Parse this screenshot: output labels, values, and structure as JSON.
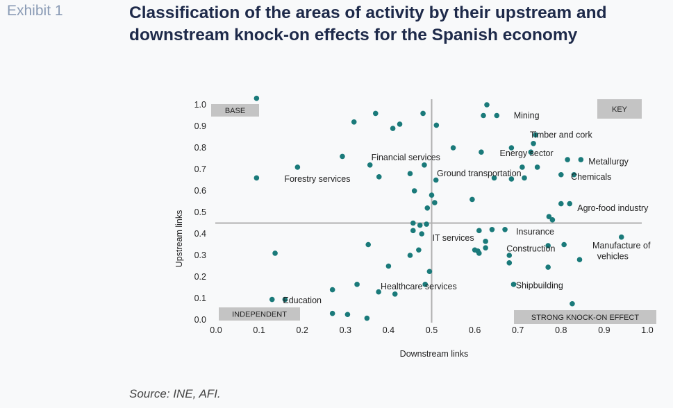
{
  "header": {
    "exhibit": "Exhibit 1",
    "title": "Classification of the areas of activity by their upstream and downstream knock-on effects for the Spanish economy"
  },
  "footer": {
    "source": "Source: INE, AFI."
  },
  "colors": {
    "marker": "#1a7a7a",
    "quadrant_box": "#c4c4c4",
    "divider": "#b0b0b0",
    "text": "#222222"
  },
  "chart_data": {
    "type": "scatter",
    "xlabel": "Downstream links",
    "ylabel": "Upstream links",
    "xlim": [
      0,
      1
    ],
    "ylim": [
      0,
      1
    ],
    "xticks": [
      "0.0",
      "0.1",
      "0.2",
      "0.3",
      "0.4",
      "0.5",
      "0.6",
      "0.7",
      "0.8",
      "0.9",
      "1.0"
    ],
    "yticks": [
      "0.0",
      "0.1",
      "0.2",
      "0.3",
      "0.4",
      "0.5",
      "0.6",
      "0.7",
      "0.8",
      "0.9",
      "1.0"
    ],
    "grid": false,
    "divider": {
      "x": 0.5,
      "y": 0.45
    },
    "quadrants": {
      "base": "BASE",
      "key": "KEY",
      "independent": "INDEPENDENT",
      "strong": "STRONG KNOCK-ON EFFECT"
    },
    "points": [
      {
        "x": 0.094,
        "y": 1.03
      },
      {
        "x": 0.094,
        "y": 0.66
      },
      {
        "x": 0.137,
        "y": 0.31
      },
      {
        "x": 0.13,
        "y": 0.095
      },
      {
        "x": 0.16,
        "y": 0.095
      },
      {
        "x": 0.189,
        "y": 0.71
      },
      {
        "x": 0.27,
        "y": 0.14
      },
      {
        "x": 0.27,
        "y": 0.03
      },
      {
        "x": 0.293,
        "y": 0.76
      },
      {
        "x": 0.305,
        "y": 0.025
      },
      {
        "x": 0.32,
        "y": 0.92
      },
      {
        "x": 0.327,
        "y": 0.165
      },
      {
        "x": 0.35,
        "y": 0.008
      },
      {
        "x": 0.353,
        "y": 0.35
      },
      {
        "x": 0.357,
        "y": 0.72
      },
      {
        "x": 0.37,
        "y": 0.96
      },
      {
        "x": 0.378,
        "y": 0.665
      },
      {
        "x": 0.377,
        "y": 0.13
      },
      {
        "x": 0.4,
        "y": 0.25
      },
      {
        "x": 0.41,
        "y": 0.89
      },
      {
        "x": 0.415,
        "y": 0.12
      },
      {
        "x": 0.426,
        "y": 0.91
      },
      {
        "x": 0.45,
        "y": 0.68
      },
      {
        "x": 0.45,
        "y": 0.3
      },
      {
        "x": 0.457,
        "y": 0.45
      },
      {
        "x": 0.457,
        "y": 0.415
      },
      {
        "x": 0.46,
        "y": 0.6
      },
      {
        "x": 0.47,
        "y": 0.325
      },
      {
        "x": 0.473,
        "y": 0.44
      },
      {
        "x": 0.477,
        "y": 0.4
      },
      {
        "x": 0.48,
        "y": 0.96
      },
      {
        "x": 0.483,
        "y": 0.72
      },
      {
        "x": 0.485,
        "y": 0.165
      },
      {
        "x": 0.488,
        "y": 0.445
      },
      {
        "x": 0.49,
        "y": 0.52
      },
      {
        "x": 0.495,
        "y": 0.225
      },
      {
        "x": 0.5,
        "y": 0.58
      },
      {
        "x": 0.507,
        "y": 0.545
      },
      {
        "x": 0.51,
        "y": 0.65
      },
      {
        "x": 0.511,
        "y": 0.905
      },
      {
        "x": 0.55,
        "y": 0.8
      },
      {
        "x": 0.594,
        "y": 0.56
      },
      {
        "x": 0.6,
        "y": 0.325
      },
      {
        "x": 0.607,
        "y": 0.32
      },
      {
        "x": 0.61,
        "y": 0.415
      },
      {
        "x": 0.61,
        "y": 0.31
      },
      {
        "x": 0.615,
        "y": 0.78
      },
      {
        "x": 0.62,
        "y": 0.95
      },
      {
        "x": 0.625,
        "y": 0.335
      },
      {
        "x": 0.625,
        "y": 0.365
      },
      {
        "x": 0.628,
        "y": 1.0
      },
      {
        "x": 0.64,
        "y": 0.42
      },
      {
        "x": 0.645,
        "y": 0.66
      },
      {
        "x": 0.651,
        "y": 0.95
      },
      {
        "x": 0.67,
        "y": 0.42
      },
      {
        "x": 0.68,
        "y": 0.3
      },
      {
        "x": 0.68,
        "y": 0.265
      },
      {
        "x": 0.685,
        "y": 0.655
      },
      {
        "x": 0.685,
        "y": 0.8
      },
      {
        "x": 0.69,
        "y": 0.165
      },
      {
        "x": 0.71,
        "y": 0.71
      },
      {
        "x": 0.715,
        "y": 0.66
      },
      {
        "x": 0.73,
        "y": 0.78
      },
      {
        "x": 0.736,
        "y": 0.82
      },
      {
        "x": 0.741,
        "y": 0.86
      },
      {
        "x": 0.745,
        "y": 0.71
      },
      {
        "x": 0.77,
        "y": 0.345
      },
      {
        "x": 0.77,
        "y": 0.245
      },
      {
        "x": 0.772,
        "y": 0.48
      },
      {
        "x": 0.78,
        "y": 0.465
      },
      {
        "x": 0.8,
        "y": 0.54
      },
      {
        "x": 0.8,
        "y": 0.675
      },
      {
        "x": 0.807,
        "y": 0.35
      },
      {
        "x": 0.815,
        "y": 0.745
      },
      {
        "x": 0.82,
        "y": 0.54
      },
      {
        "x": 0.826,
        "y": 0.075
      },
      {
        "x": 0.83,
        "y": 0.675
      },
      {
        "x": 0.843,
        "y": 0.28
      },
      {
        "x": 0.846,
        "y": 0.745
      },
      {
        "x": 0.94,
        "y": 0.385
      }
    ],
    "annotations": [
      {
        "text": "Mining",
        "x": 0.72,
        "y": 0.95
      },
      {
        "text": "Timber and cork",
        "x": 0.8,
        "y": 0.86
      },
      {
        "text": "Energy sector",
        "x": 0.72,
        "y": 0.775
      },
      {
        "text": "Metallurgy",
        "x": 0.91,
        "y": 0.735
      },
      {
        "text": "Financial services",
        "x": 0.44,
        "y": 0.755
      },
      {
        "text": "Ground transportation",
        "x": 0.61,
        "y": 0.68
      },
      {
        "text": "Chemicals",
        "x": 0.87,
        "y": 0.665
      },
      {
        "text": "Forestry services",
        "x": 0.235,
        "y": 0.655
      },
      {
        "text": "Agro-food industry",
        "x": 0.92,
        "y": 0.52
      },
      {
        "text": "Insurance",
        "x": 0.74,
        "y": 0.41
      },
      {
        "text": "IT services",
        "x": 0.55,
        "y": 0.38
      },
      {
        "text": "Manufacture of",
        "x": 0.94,
        "y": 0.345
      },
      {
        "text": "Construction",
        "x": 0.73,
        "y": 0.33
      },
      {
        "text": "vehicles",
        "x": 0.92,
        "y": 0.295
      },
      {
        "text": "Shipbuilding",
        "x": 0.75,
        "y": 0.16
      },
      {
        "text": "Healthcare services",
        "x": 0.47,
        "y": 0.155
      },
      {
        "text": "Education",
        "x": 0.2,
        "y": 0.09
      }
    ]
  }
}
